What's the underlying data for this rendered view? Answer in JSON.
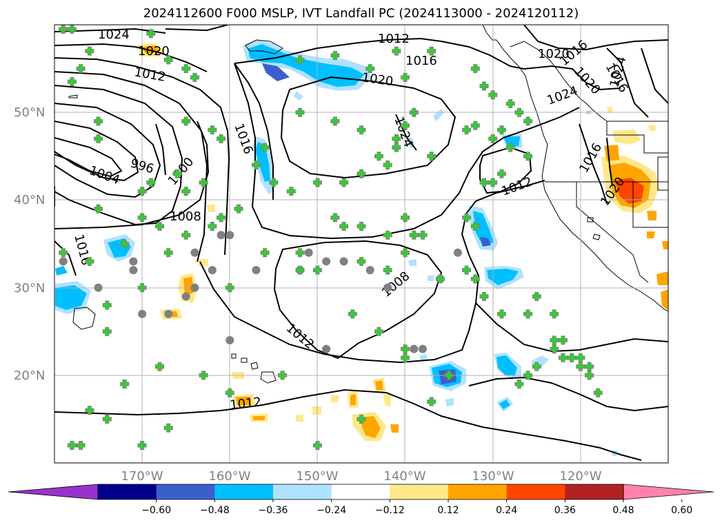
{
  "title": "2024112600 F000 MSLP, IVT Landfall PC (2024113000 - 2024120112)",
  "map": {
    "projection": "PlateCarree",
    "lon_range": [
      -180,
      -110
    ],
    "lat_range": [
      10,
      60
    ],
    "lat_labels": [
      "50°N",
      "40°N",
      "30°N",
      "20°N"
    ],
    "lon_labels": [
      "170°W",
      "160°W",
      "150°W",
      "140°W",
      "130°W",
      "120°W"
    ],
    "gridlines": true,
    "land_outline": "black coastlines and state borders",
    "pressure_contour_labels": [
      "1024",
      "1020",
      "1012",
      "1016",
      "1020",
      "1012",
      "1020",
      "1016",
      "1020",
      "1024",
      "1024",
      "1016",
      "996",
      "1000",
      "1004",
      "1024",
      "1008",
      "1016",
      "1012",
      "1016",
      "1020",
      "1016",
      "1008",
      "1012",
      "1012"
    ]
  },
  "colorbar": {
    "tick_labels": [
      "−0.60",
      "−0.48",
      "−0.36",
      "−0.24",
      "−0.12",
      "0.12",
      "0.24",
      "0.36",
      "0.48",
      "0.60"
    ],
    "colors": [
      "#9932cc",
      "#00008b",
      "#3a5fcd",
      "#00bfff",
      "#b0e2ff",
      "#ffffff",
      "#ffe88a",
      "#ffa500",
      "#ff4500",
      "#b22222",
      "#ff82ab"
    ],
    "extend": "both"
  },
  "markers": {
    "green_cross_color": "#33cc33",
    "gray_circle_color": "#808080",
    "green_crosses": [
      [
        -179,
        59.5
      ],
      [
        -178,
        59.5
      ],
      [
        -169,
        59
      ],
      [
        -176,
        57
      ],
      [
        -167,
        56
      ],
      [
        -177,
        55
      ],
      [
        -165,
        55
      ],
      [
        -178,
        53.5
      ],
      [
        -164,
        54
      ],
      [
        -152,
        56
      ],
      [
        -148,
        56.5
      ],
      [
        -144,
        55
      ],
      [
        -140,
        54
      ],
      [
        -132,
        55
      ],
      [
        -137,
        57
      ],
      [
        -141,
        57
      ],
      [
        -131,
        53
      ],
      [
        -130,
        52
      ],
      [
        -128,
        51
      ],
      [
        -127,
        50
      ],
      [
        -126,
        49
      ],
      [
        -162,
        48
      ],
      [
        -165,
        49
      ],
      [
        -175,
        49
      ],
      [
        -175,
        47
      ],
      [
        -152,
        50
      ],
      [
        -148,
        49
      ],
      [
        -145,
        48
      ],
      [
        -140,
        48.5
      ],
      [
        -139,
        50
      ],
      [
        -141,
        47
      ],
      [
        -141,
        46
      ],
      [
        -137,
        45
      ],
      [
        -133,
        48
      ],
      [
        -132,
        48.5
      ],
      [
        -130,
        47
      ],
      [
        -129,
        48
      ],
      [
        -128,
        46
      ],
      [
        -126,
        45
      ],
      [
        -129,
        43
      ],
      [
        -131,
        42
      ],
      [
        -130,
        42
      ],
      [
        -156,
        46
      ],
      [
        -157,
        44
      ],
      [
        -166,
        43
      ],
      [
        -161,
        47
      ],
      [
        -163,
        42
      ],
      [
        -169,
        42
      ],
      [
        -175,
        39
      ],
      [
        -170,
        41
      ],
      [
        -165,
        41
      ],
      [
        -155,
        42
      ],
      [
        -153,
        41
      ],
      [
        -150,
        42
      ],
      [
        -147,
        42
      ],
      [
        -145,
        43
      ],
      [
        -143,
        45
      ],
      [
        -142,
        44
      ],
      [
        -148,
        38
      ],
      [
        -147,
        37
      ],
      [
        -145,
        37
      ],
      [
        -140,
        38
      ],
      [
        -139,
        36
      ],
      [
        -133,
        38
      ],
      [
        -132,
        37
      ],
      [
        -159,
        39
      ],
      [
        -161,
        38
      ],
      [
        -162,
        37
      ],
      [
        -165,
        36
      ],
      [
        -167,
        34
      ],
      [
        -168,
        37
      ],
      [
        -170,
        38
      ],
      [
        -172,
        35
      ],
      [
        -176,
        33
      ],
      [
        -179,
        34
      ],
      [
        -170,
        30
      ],
      [
        -174,
        28
      ],
      [
        -174,
        25
      ],
      [
        -172,
        19
      ],
      [
        -176,
        16
      ],
      [
        -177,
        12
      ],
      [
        -174,
        15
      ],
      [
        -168,
        21
      ],
      [
        -160,
        30
      ],
      [
        -156,
        34
      ],
      [
        -152,
        34
      ],
      [
        -150,
        32
      ],
      [
        -145,
        33
      ],
      [
        -142,
        32
      ],
      [
        -140,
        34
      ],
      [
        -146,
        27
      ],
      [
        -143,
        25
      ],
      [
        -140,
        22
      ],
      [
        -136,
        31
      ],
      [
        -133,
        32
      ],
      [
        -132,
        31
      ],
      [
        -131,
        29
      ],
      [
        -129,
        27
      ],
      [
        -126,
        27
      ],
      [
        -125,
        29
      ],
      [
        -123,
        27
      ],
      [
        -123,
        24
      ],
      [
        -123,
        23
      ],
      [
        -122,
        24
      ],
      [
        -122,
        22
      ],
      [
        -120,
        22
      ],
      [
        -120,
        21
      ],
      [
        -119,
        20
      ],
      [
        -118,
        18
      ],
      [
        -119,
        21
      ],
      [
        -121,
        22
      ],
      [
        -125,
        21
      ],
      [
        -127,
        19
      ],
      [
        -126,
        20
      ],
      [
        -135,
        20
      ],
      [
        -137,
        17
      ],
      [
        -140,
        23
      ],
      [
        -145,
        15
      ],
      [
        -150,
        12
      ],
      [
        -154,
        20
      ],
      [
        -160,
        18
      ],
      [
        -163,
        20
      ],
      [
        -167,
        14
      ],
      [
        -170,
        12
      ],
      [
        -178,
        12
      ],
      [
        -152,
        32
      ],
      [
        -142,
        36
      ],
      [
        -138,
        36
      ],
      [
        -132,
        37
      ]
    ],
    "gray_circles": [
      [
        -179,
        33
      ],
      [
        -175,
        30
      ],
      [
        -167,
        27
      ],
      [
        -170,
        27
      ],
      [
        -165,
        29
      ],
      [
        -164,
        30
      ],
      [
        -160,
        36
      ],
      [
        -161,
        36
      ],
      [
        -164,
        34
      ],
      [
        -171,
        33
      ],
      [
        -171,
        32
      ],
      [
        -162,
        32
      ],
      [
        -151,
        34
      ],
      [
        -149,
        33
      ],
      [
        -147,
        33
      ],
      [
        -144,
        32
      ],
      [
        -142,
        30
      ],
      [
        -139,
        23
      ],
      [
        -138,
        23
      ],
      [
        -149,
        23
      ],
      [
        -160,
        24
      ],
      [
        -157,
        32
      ],
      [
        -152,
        32
      ],
      [
        -136,
        31
      ],
      [
        -134,
        34
      ]
    ]
  }
}
